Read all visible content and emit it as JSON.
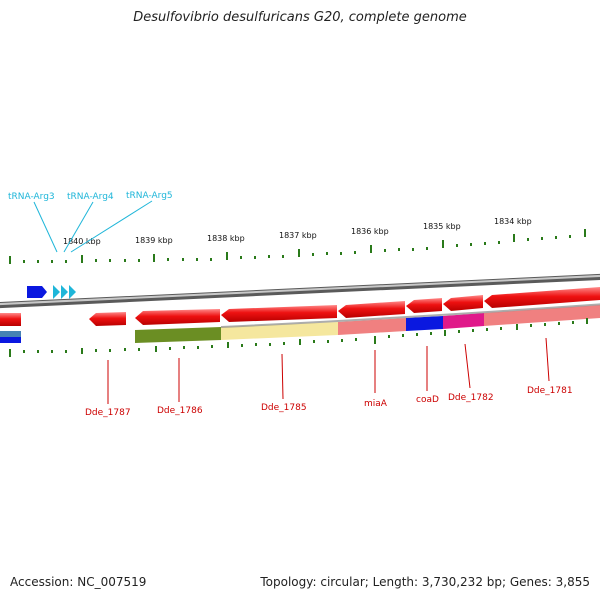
{
  "title": "Desulfovibrio desulfuricans G20, complete genome",
  "footer": {
    "accession": "Accession: NC_007519",
    "topology": "Topology: circular; Length: 3,730,232 bp; Genes: 3,855"
  },
  "ruler": {
    "labels": [
      "1840 kbp",
      "1839 kbp",
      "1838 kbp",
      "1837 kbp",
      "1836 kbp",
      "1835 kbp",
      "1834 kbp"
    ]
  },
  "trna_labels": [
    "tRNA-Arg3",
    "tRNA-Arg4",
    "tRNA-Arg5"
  ],
  "gene_labels": [
    "Dde_1787",
    "Dde_1786",
    "Dde_1785",
    "miaA",
    "coaD",
    "Dde_1782",
    "Dde_1781"
  ],
  "colors": {
    "cds": "#ee1111",
    "trna": "#1fb6d9",
    "backbone": "#8a8a8a",
    "tick": "#2a7a1a",
    "gene_label": "#cc0000"
  }
}
